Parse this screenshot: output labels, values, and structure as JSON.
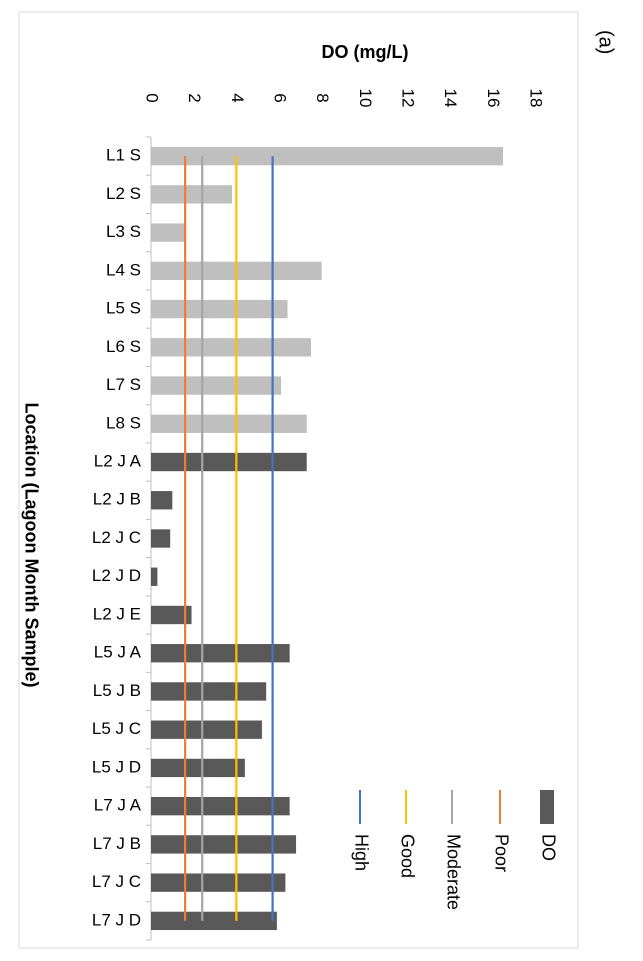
{
  "panel_label": "(a)",
  "chart_data": {
    "type": "bar",
    "orientation": "horizontal",
    "title": "",
    "xlabel": "Location (Lagoon Month Sample)",
    "ylabel": "DO (mg/L)",
    "ylim": [
      0,
      18
    ],
    "ytick_step": 2,
    "categories": [
      "L1 S",
      "L2 S",
      "L3 S",
      "L4 S",
      "L5 S",
      "L6 S",
      "L7 S",
      "L8 S",
      "L2 J A",
      "L2 J B",
      "L2 J C",
      "L2 J D",
      "L2 J E",
      "L5 J A",
      "L5 J B",
      "L5 J C",
      "L5 J D",
      "L7 J A",
      "L7 J B",
      "L7 J C",
      "L7 J D"
    ],
    "series": [
      {
        "name": "DO",
        "values": [
          16.5,
          3.8,
          1.6,
          8.0,
          6.4,
          7.5,
          6.1,
          7.3,
          7.3,
          1.0,
          0.9,
          0.3,
          1.9,
          6.5,
          5.4,
          5.2,
          4.4,
          6.5,
          6.8,
          6.3,
          5.9
        ],
        "color": "#595959",
        "highlight_color": "#bfbfbf",
        "highlight_count": 8
      }
    ],
    "reference_lines": [
      {
        "name": "Poor",
        "value": 1.6,
        "color": "#ed7d31"
      },
      {
        "name": "Moderate",
        "value": 2.4,
        "color": "#a5a5a5"
      },
      {
        "name": "Good",
        "value": 4.0,
        "color": "#ffc000"
      },
      {
        "name": "High",
        "value": 5.7,
        "color": "#4472c4"
      }
    ],
    "legend": [
      "DO",
      "Poor",
      "Moderate",
      "Good",
      "High"
    ],
    "legend_position": "right",
    "grid": false
  }
}
